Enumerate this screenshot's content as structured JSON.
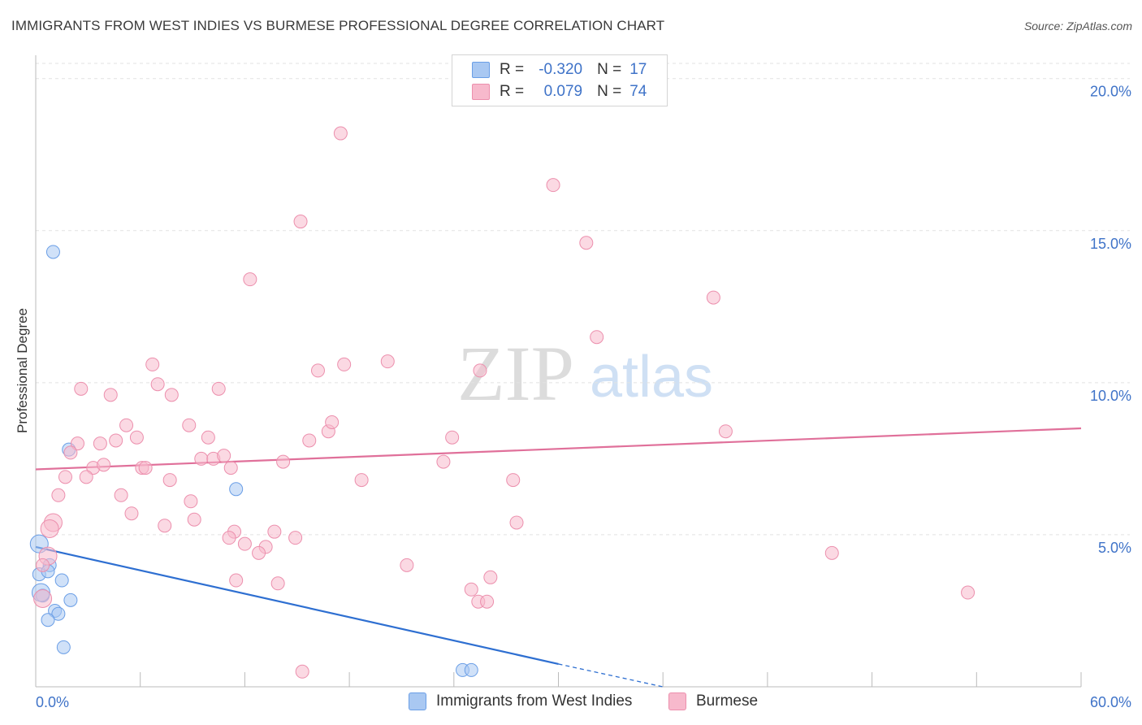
{
  "title": "IMMIGRANTS FROM WEST INDIES VS BURMESE PROFESSIONAL DEGREE CORRELATION CHART",
  "source": "Source: ZipAtlas.com",
  "watermark": {
    "zip": "ZIP",
    "atlas": "atlas"
  },
  "legend": {
    "r_label": "R =",
    "n_label": "N =",
    "rows": [
      {
        "name": "Immigrants from West Indies",
        "r": "-0.320",
        "n": "17",
        "color": "#a9c8f2",
        "border": "#6a9ee6"
      },
      {
        "name": "Burmese",
        "r": "0.079",
        "n": "74",
        "color": "#f7b9cc",
        "border": "#ec8fad"
      }
    ]
  },
  "chart_data": {
    "type": "scatter",
    "xlabel": "",
    "ylabel": "Professional Degree",
    "xlim": [
      0,
      60
    ],
    "ylim": [
      0,
      20.5
    ],
    "x_tick_labels": [
      "0.0%",
      "60.0%"
    ],
    "y_ticks": [
      5,
      10,
      15,
      20
    ],
    "y_tick_labels": [
      "5.0%",
      "10.0%",
      "15.0%",
      "20.0%"
    ],
    "series": [
      {
        "name": "Immigrants from West Indies",
        "color": "#6a9ee6",
        "fill": "#a9c8f2",
        "line_color": "#2e6fd1",
        "trend": {
          "x0": 0,
          "y0": 4.6,
          "x1": 30,
          "y1": 0.75,
          "dash_to_x": 36,
          "dash_to_y": 0.0
        },
        "points": [
          [
            1.0,
            14.3
          ],
          [
            0.2,
            4.7
          ],
          [
            0.8,
            4.0
          ],
          [
            0.2,
            3.7
          ],
          [
            0.7,
            3.8
          ],
          [
            1.5,
            3.5
          ],
          [
            0.4,
            3.0
          ],
          [
            2.0,
            2.85
          ],
          [
            1.1,
            2.5
          ],
          [
            1.3,
            2.4
          ],
          [
            0.7,
            2.2
          ],
          [
            1.6,
            1.3
          ],
          [
            1.9,
            7.8
          ],
          [
            11.5,
            6.5
          ],
          [
            24.5,
            0.55
          ],
          [
            25.0,
            0.55
          ],
          [
            0.3,
            3.1
          ]
        ]
      },
      {
        "name": "Burmese",
        "color": "#ec8fad",
        "fill": "#f7b9cc",
        "line_color": "#e0709a",
        "trend": {
          "x0": 0,
          "y0": 7.15,
          "x1": 60,
          "y1": 8.5
        },
        "points": [
          [
            17.5,
            18.2
          ],
          [
            29.7,
            16.5
          ],
          [
            15.2,
            15.3
          ],
          [
            31.6,
            14.6
          ],
          [
            12.3,
            13.4
          ],
          [
            38.9,
            12.8
          ],
          [
            32.2,
            11.5
          ],
          [
            6.7,
            10.6
          ],
          [
            16.2,
            10.4
          ],
          [
            17.7,
            10.6
          ],
          [
            20.2,
            10.7
          ],
          [
            25.5,
            10.4
          ],
          [
            2.6,
            9.8
          ],
          [
            7.0,
            9.95
          ],
          [
            10.5,
            9.8
          ],
          [
            4.3,
            9.6
          ],
          [
            7.8,
            9.6
          ],
          [
            5.2,
            8.6
          ],
          [
            8.8,
            8.6
          ],
          [
            16.8,
            8.4
          ],
          [
            17.0,
            8.7
          ],
          [
            2.4,
            8.0
          ],
          [
            3.7,
            8.0
          ],
          [
            4.6,
            8.1
          ],
          [
            5.8,
            8.2
          ],
          [
            9.9,
            8.2
          ],
          [
            15.7,
            8.1
          ],
          [
            23.9,
            8.2
          ],
          [
            39.6,
            8.4
          ],
          [
            2.0,
            7.7
          ],
          [
            9.5,
            7.5
          ],
          [
            10.2,
            7.5
          ],
          [
            10.8,
            7.6
          ],
          [
            14.2,
            7.4
          ],
          [
            23.4,
            7.4
          ],
          [
            3.3,
            7.2
          ],
          [
            3.9,
            7.3
          ],
          [
            6.1,
            7.2
          ],
          [
            6.3,
            7.2
          ],
          [
            11.2,
            7.2
          ],
          [
            1.7,
            6.9
          ],
          [
            2.9,
            6.9
          ],
          [
            7.7,
            6.8
          ],
          [
            18.7,
            6.8
          ],
          [
            27.4,
            6.8
          ],
          [
            1.3,
            6.3
          ],
          [
            4.9,
            6.3
          ],
          [
            8.9,
            6.1
          ],
          [
            5.5,
            5.7
          ],
          [
            9.1,
            5.5
          ],
          [
            7.4,
            5.3
          ],
          [
            27.6,
            5.4
          ],
          [
            1.0,
            5.4
          ],
          [
            0.8,
            5.2
          ],
          [
            11.4,
            5.1
          ],
          [
            13.7,
            5.1
          ],
          [
            11.1,
            4.9
          ],
          [
            14.9,
            4.9
          ],
          [
            12.0,
            4.7
          ],
          [
            13.2,
            4.6
          ],
          [
            12.8,
            4.4
          ],
          [
            0.7,
            4.3
          ],
          [
            0.4,
            4.0
          ],
          [
            21.3,
            4.0
          ],
          [
            45.7,
            4.4
          ],
          [
            11.5,
            3.5
          ],
          [
            13.9,
            3.4
          ],
          [
            25.0,
            3.2
          ],
          [
            26.1,
            3.6
          ],
          [
            53.5,
            3.1
          ],
          [
            0.4,
            2.9
          ],
          [
            25.4,
            2.8
          ],
          [
            25.9,
            2.8
          ],
          [
            15.3,
            0.5
          ]
        ]
      }
    ]
  }
}
